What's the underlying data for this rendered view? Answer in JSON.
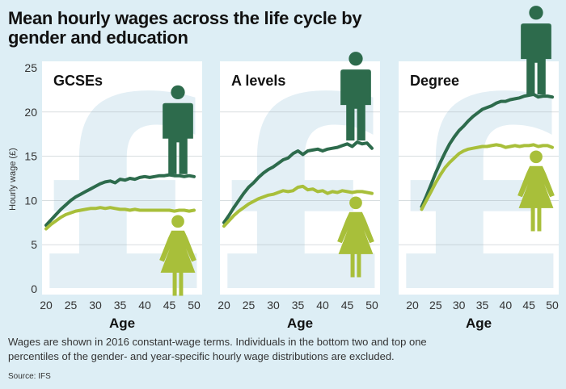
{
  "header": {
    "title_line1": "Mean hourly wages across the life cycle by",
    "title_line2": "gender and education"
  },
  "footer": {
    "note_line1": "Wages are shown in 2016 constant-wage terms. Individuals in the bottom two and top one",
    "note_line2": "percentiles of the gender- and year-specific hourly wage distributions are excluded.",
    "source": "Source: IFS"
  },
  "colors": {
    "male": "#2d6b4c",
    "female": "#a8bf3a",
    "background": "#ddeef5",
    "panel": "#ffffff",
    "watermark": "#e3eff5"
  },
  "icons": {
    "male": "man-icon",
    "female": "woman-icon",
    "watermark": "pound-sign-icon"
  },
  "chart_data": [
    {
      "type": "line",
      "title": "GCSEs",
      "xlabel": "Age",
      "ylabel": "Hourly wage (£)",
      "xlim": [
        20,
        50
      ],
      "ylim": [
        0,
        25
      ],
      "xticks": [
        20,
        25,
        30,
        35,
        40,
        45,
        50
      ],
      "yticks": [
        0,
        5,
        10,
        15,
        20,
        25
      ],
      "series": [
        {
          "key": "male",
          "x": [
            20,
            21,
            22,
            23,
            24,
            25,
            26,
            27,
            28,
            29,
            30,
            31,
            32,
            33,
            34,
            35,
            36,
            37,
            38,
            39,
            40,
            41,
            42,
            43,
            44,
            45,
            46,
            47,
            48,
            49,
            50
          ],
          "values": [
            7.2,
            7.8,
            8.4,
            9.0,
            9.5,
            10.0,
            10.4,
            10.7,
            11.0,
            11.3,
            11.6,
            11.9,
            12.1,
            12.2,
            12.0,
            12.4,
            12.3,
            12.5,
            12.4,
            12.6,
            12.7,
            12.6,
            12.7,
            12.8,
            12.8,
            12.9,
            12.8,
            12.8,
            12.7,
            12.8,
            12.7
          ]
        },
        {
          "key": "female",
          "x": [
            20,
            21,
            22,
            23,
            24,
            25,
            26,
            27,
            28,
            29,
            30,
            31,
            32,
            33,
            34,
            35,
            36,
            37,
            38,
            39,
            40,
            41,
            42,
            43,
            44,
            45,
            46,
            47,
            48,
            49,
            50
          ],
          "values": [
            6.8,
            7.3,
            7.7,
            8.1,
            8.4,
            8.6,
            8.8,
            8.9,
            9.0,
            9.1,
            9.1,
            9.2,
            9.1,
            9.2,
            9.1,
            9.0,
            9.0,
            8.9,
            9.0,
            8.9,
            8.9,
            8.9,
            8.9,
            8.9,
            8.9,
            8.9,
            8.8,
            8.9,
            8.9,
            8.8,
            8.9
          ]
        }
      ]
    },
    {
      "type": "line",
      "title": "A levels",
      "xlabel": "Age",
      "xlim": [
        20,
        50
      ],
      "ylim": [
        0,
        25
      ],
      "xticks": [
        20,
        25,
        30,
        35,
        40,
        45,
        50
      ],
      "series": [
        {
          "key": "male",
          "x": [
            20,
            21,
            22,
            23,
            24,
            25,
            26,
            27,
            28,
            29,
            30,
            31,
            32,
            33,
            34,
            35,
            36,
            37,
            38,
            39,
            40,
            41,
            42,
            43,
            44,
            45,
            46,
            47,
            48,
            49,
            50
          ],
          "values": [
            7.5,
            8.3,
            9.2,
            10.0,
            10.8,
            11.5,
            12.0,
            12.6,
            13.1,
            13.5,
            13.8,
            14.2,
            14.6,
            14.8,
            15.3,
            15.6,
            15.2,
            15.6,
            15.7,
            15.8,
            15.6,
            15.8,
            15.9,
            16.0,
            16.2,
            16.4,
            16.1,
            16.6,
            16.4,
            16.5,
            15.9
          ]
        },
        {
          "key": "female",
          "x": [
            20,
            21,
            22,
            23,
            24,
            25,
            26,
            27,
            28,
            29,
            30,
            31,
            32,
            33,
            34,
            35,
            36,
            37,
            38,
            39,
            40,
            41,
            42,
            43,
            44,
            45,
            46,
            47,
            48,
            49,
            50
          ],
          "values": [
            7.1,
            7.7,
            8.3,
            8.8,
            9.2,
            9.6,
            9.9,
            10.2,
            10.4,
            10.6,
            10.7,
            10.9,
            11.1,
            11.0,
            11.1,
            11.5,
            11.6,
            11.2,
            11.3,
            11.0,
            11.1,
            10.8,
            11.0,
            10.9,
            11.1,
            11.0,
            10.9,
            11.0,
            11.0,
            10.9,
            10.8
          ]
        }
      ]
    },
    {
      "type": "line",
      "title": "Degree",
      "xlabel": "Age",
      "xlim": [
        20,
        50
      ],
      "ylim": [
        0,
        25
      ],
      "xticks": [
        20,
        25,
        30,
        35,
        40,
        45,
        50
      ],
      "series": [
        {
          "key": "male",
          "x": [
            22,
            23,
            24,
            25,
            26,
            27,
            28,
            29,
            30,
            31,
            32,
            33,
            34,
            35,
            36,
            37,
            38,
            39,
            40,
            41,
            42,
            43,
            44,
            45,
            46,
            47,
            48,
            49,
            50
          ],
          "values": [
            9.3,
            10.5,
            11.8,
            13.1,
            14.3,
            15.4,
            16.4,
            17.2,
            17.9,
            18.4,
            19.0,
            19.5,
            19.9,
            20.3,
            20.5,
            20.7,
            21.0,
            21.2,
            21.2,
            21.4,
            21.5,
            21.6,
            21.8,
            21.9,
            22.0,
            21.7,
            21.8,
            21.8,
            21.7
          ]
        },
        {
          "key": "female",
          "x": [
            22,
            23,
            24,
            25,
            26,
            27,
            28,
            29,
            30,
            31,
            32,
            33,
            34,
            35,
            36,
            37,
            38,
            39,
            40,
            41,
            42,
            43,
            44,
            45,
            46,
            47,
            48,
            49,
            50
          ],
          "values": [
            9.0,
            10.0,
            11.0,
            12.0,
            12.9,
            13.7,
            14.3,
            14.8,
            15.3,
            15.6,
            15.8,
            15.9,
            16.0,
            16.1,
            16.1,
            16.2,
            16.3,
            16.2,
            16.0,
            16.1,
            16.2,
            16.1,
            16.2,
            16.2,
            16.3,
            16.1,
            16.2,
            16.2,
            16.0
          ]
        }
      ]
    }
  ]
}
